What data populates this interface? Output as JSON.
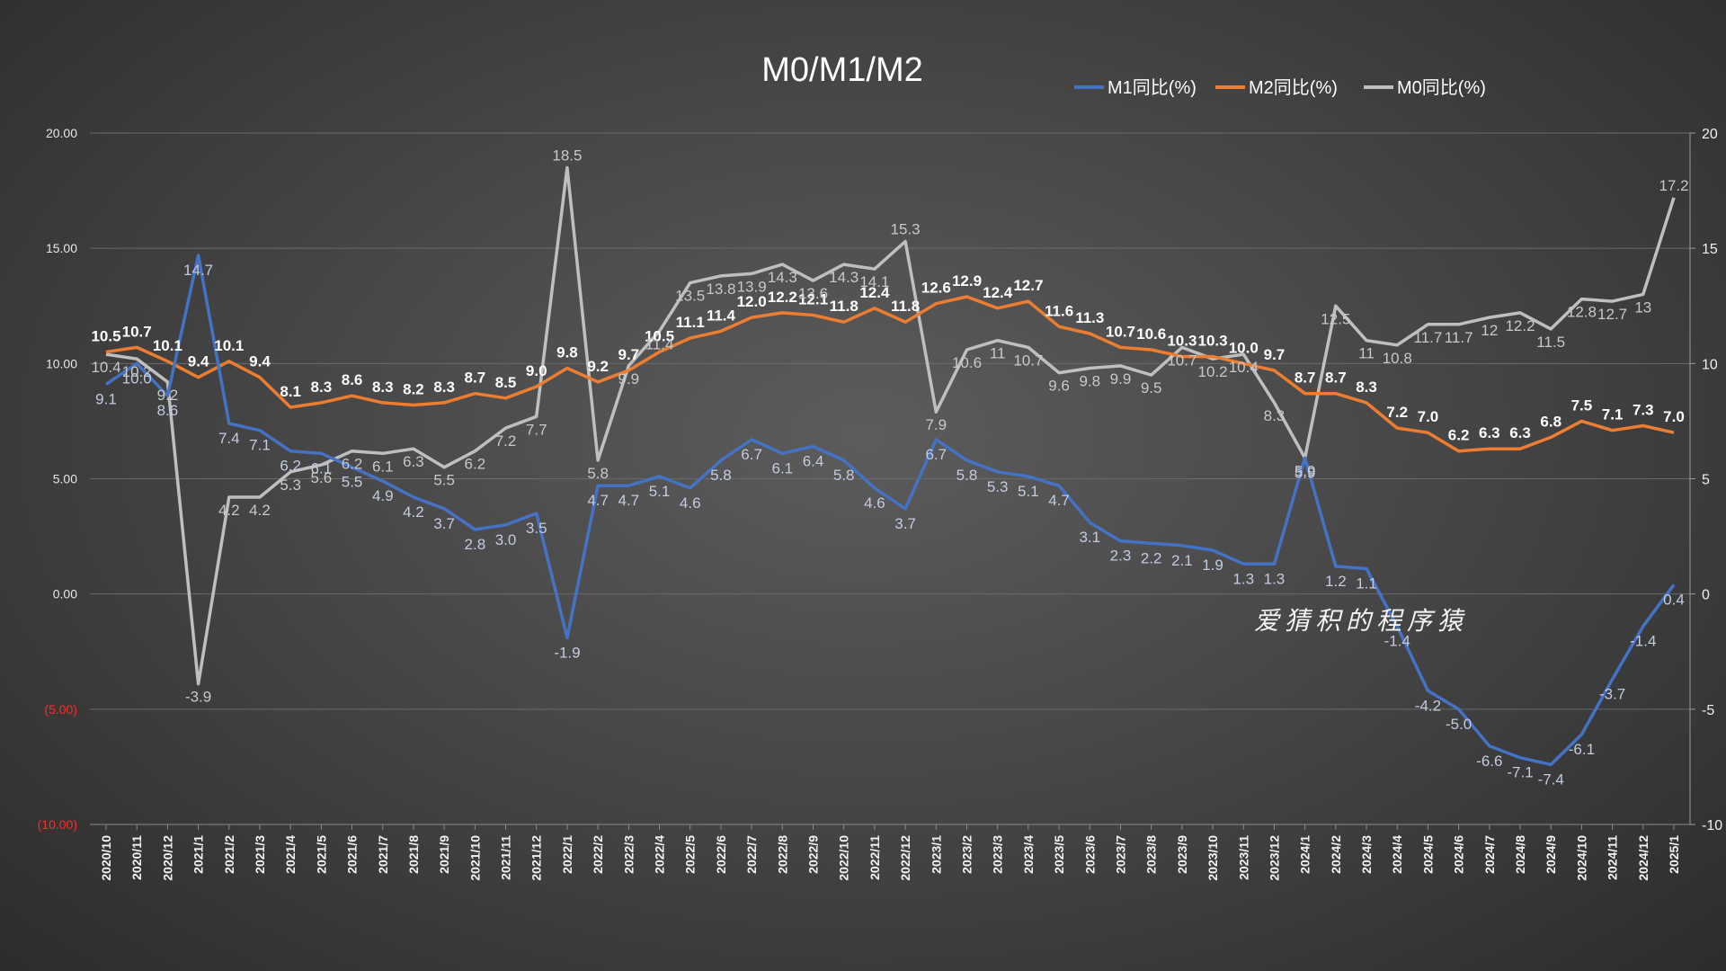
{
  "chart_data": {
    "type": "line",
    "title": "M0/M1/M2",
    "categories": [
      "2020/10",
      "2020/11",
      "2020/12",
      "2021/1",
      "2021/2",
      "2021/3",
      "2021/4",
      "2021/5",
      "2021/6",
      "2021/7",
      "2021/8",
      "2021/9",
      "2021/10",
      "2021/11",
      "2021/12",
      "2022/1",
      "2022/2",
      "2022/3",
      "2022/4",
      "2022/5",
      "2022/6",
      "2022/7",
      "2022/8",
      "2022/9",
      "2022/10",
      "2022/11",
      "2022/12",
      "2023/1",
      "2023/2",
      "2023/3",
      "2023/4",
      "2023/5",
      "2023/6",
      "2023/7",
      "2023/8",
      "2023/9",
      "2023/10",
      "2023/11",
      "2023/12",
      "2024/1",
      "2024/2",
      "2024/3",
      "2024/4",
      "2024/5",
      "2024/6",
      "2024/7",
      "2024/8",
      "2024/9",
      "2024/10",
      "2024/11",
      "2024/12",
      "2025/1"
    ],
    "left_axis": {
      "ylim": [
        -10,
        20
      ],
      "ticks": [
        "(10.00)",
        "(5.00)",
        "0.00",
        "5.00",
        "10.00",
        "15.00",
        "20.00"
      ],
      "tick_values": [
        -10,
        -5,
        0,
        5,
        10,
        15,
        20
      ]
    },
    "right_axis": {
      "ylim": [
        -10,
        20
      ],
      "ticks": [
        "-10",
        "-5",
        "0",
        "5",
        "10",
        "15",
        "20"
      ],
      "tick_values": [
        -10,
        -5,
        0,
        5,
        10,
        15,
        20
      ]
    },
    "series": [
      {
        "name": "M1同比(%)",
        "color": "#4472c4",
        "values": [
          9.1,
          10.0,
          8.6,
          14.7,
          7.4,
          7.1,
          6.2,
          6.1,
          5.5,
          4.9,
          4.2,
          3.7,
          2.8,
          3.0,
          3.5,
          -1.9,
          4.7,
          4.7,
          5.1,
          4.6,
          5.8,
          6.7,
          6.1,
          6.4,
          5.8,
          4.6,
          3.7,
          6.7,
          5.8,
          5.3,
          5.1,
          4.7,
          3.1,
          2.3,
          2.2,
          2.1,
          1.9,
          1.3,
          1.3,
          5.9,
          1.2,
          1.1,
          -1.4,
          -4.2,
          -5.0,
          -6.6,
          -7.1,
          -7.4,
          -6.1,
          -3.7,
          -1.4,
          0.4
        ],
        "labels": [
          "9.1",
          "10.0",
          "8.6",
          "14.7",
          "7.4",
          "7.1",
          "6.2",
          "6.1",
          "5.5",
          "4.9",
          "4.2",
          "3.7",
          "2.8",
          "3.0",
          "3.5",
          "-1.9",
          "4.7",
          "4.7",
          "5.1",
          "4.6",
          "5.8",
          "6.7",
          "6.1",
          "6.4",
          "5.8",
          "4.6",
          "3.7",
          "6.7",
          "5.8",
          "5.3",
          "5.1",
          "4.7",
          "3.1",
          "2.3",
          "2.2",
          "2.1",
          "1.9",
          "1.3",
          "1.3",
          "5.9",
          "1.2",
          "1.1",
          "-1.4",
          "-4.2",
          "-5.0",
          "-6.6",
          "-7.1",
          "-7.4",
          "-6.1",
          "-3.7",
          "-1.4",
          "0.4"
        ]
      },
      {
        "name": "M2同比(%)",
        "color": "#ed7d31",
        "values": [
          10.5,
          10.7,
          10.1,
          9.4,
          10.1,
          9.4,
          8.1,
          8.3,
          8.6,
          8.3,
          8.2,
          8.3,
          8.7,
          8.5,
          9.0,
          9.8,
          9.2,
          9.7,
          10.5,
          11.1,
          11.4,
          12.0,
          12.2,
          12.1,
          11.8,
          12.4,
          11.8,
          12.6,
          12.9,
          12.4,
          12.7,
          11.6,
          11.3,
          10.7,
          10.6,
          10.3,
          10.3,
          10.0,
          9.7,
          8.7,
          8.7,
          8.3,
          7.2,
          7.0,
          6.2,
          6.3,
          6.3,
          6.8,
          7.5,
          7.1,
          7.3,
          7.0
        ],
        "labels": [
          "10.5",
          "10.7",
          "10.1",
          "9.4",
          "10.1",
          "9.4",
          "8.1",
          "8.3",
          "8.6",
          "8.3",
          "8.2",
          "8.3",
          "8.7",
          "8.5",
          "9.0",
          "9.8",
          "9.2",
          "9.7",
          "10.5",
          "11.1",
          "11.4",
          "12.0",
          "12.2",
          "12.1",
          "11.8",
          "12.4",
          "11.8",
          "12.6",
          "12.9",
          "12.4",
          "12.7",
          "11.6",
          "11.3",
          "10.7",
          "10.6",
          "10.3",
          "10.3",
          "10.0",
          "9.7",
          "8.7",
          "8.7",
          "8.3",
          "7.2",
          "7.0",
          "6.2",
          "6.3",
          "6.3",
          "6.8",
          "7.5",
          "7.1",
          "7.3",
          "7.0"
        ]
      },
      {
        "name": "M0同比(%)",
        "color": "#bfbfbf",
        "values": [
          10.4,
          10.2,
          9.2,
          -3.9,
          4.2,
          4.2,
          5.3,
          5.6,
          6.2,
          6.1,
          6.3,
          5.5,
          6.2,
          7.2,
          7.7,
          18.5,
          5.8,
          9.9,
          11.4,
          13.5,
          13.8,
          13.9,
          14.3,
          13.6,
          14.3,
          14.1,
          15.3,
          7.9,
          10.6,
          11.0,
          10.7,
          9.6,
          9.8,
          9.9,
          9.5,
          10.7,
          10.2,
          10.4,
          8.3,
          5.9,
          12.5,
          11.0,
          10.8,
          11.7,
          11.7,
          12.0,
          12.2,
          11.5,
          12.8,
          12.7,
          13.0,
          17.2
        ],
        "labels": [
          "10.4",
          "10.2",
          "9.2",
          "-3.9",
          "4.2",
          "4.2",
          "5.3",
          "5.6",
          "6.2",
          "6.1",
          "6.3",
          "5.5",
          "6.2",
          "7.2",
          "7.7",
          "18.5",
          "5.8",
          "9.9",
          "11.4",
          "13.5",
          "13.8",
          "13.9",
          "14.3",
          "13.6",
          "14.3",
          "14.1",
          "15.3",
          "7.9",
          "10.6",
          "11",
          "10.7",
          "9.6",
          "9.8",
          "9.9",
          "9.5",
          "10.7",
          "10.2",
          "10.4",
          "8.3",
          "5.9",
          "12.5",
          "11",
          "10.8",
          "11.7",
          "11.7",
          "12",
          "12.2",
          "11.5",
          "12.8",
          "12.7",
          "13",
          "17.2"
        ]
      }
    ],
    "legend_position": "top-right",
    "grid": true
  },
  "watermark": "爱猜积的程序猿",
  "colors": {
    "m1": "#4472c4",
    "m2": "#ed7d31",
    "m0": "#bfbfbf",
    "negative_tick": "#ff2a2a"
  }
}
